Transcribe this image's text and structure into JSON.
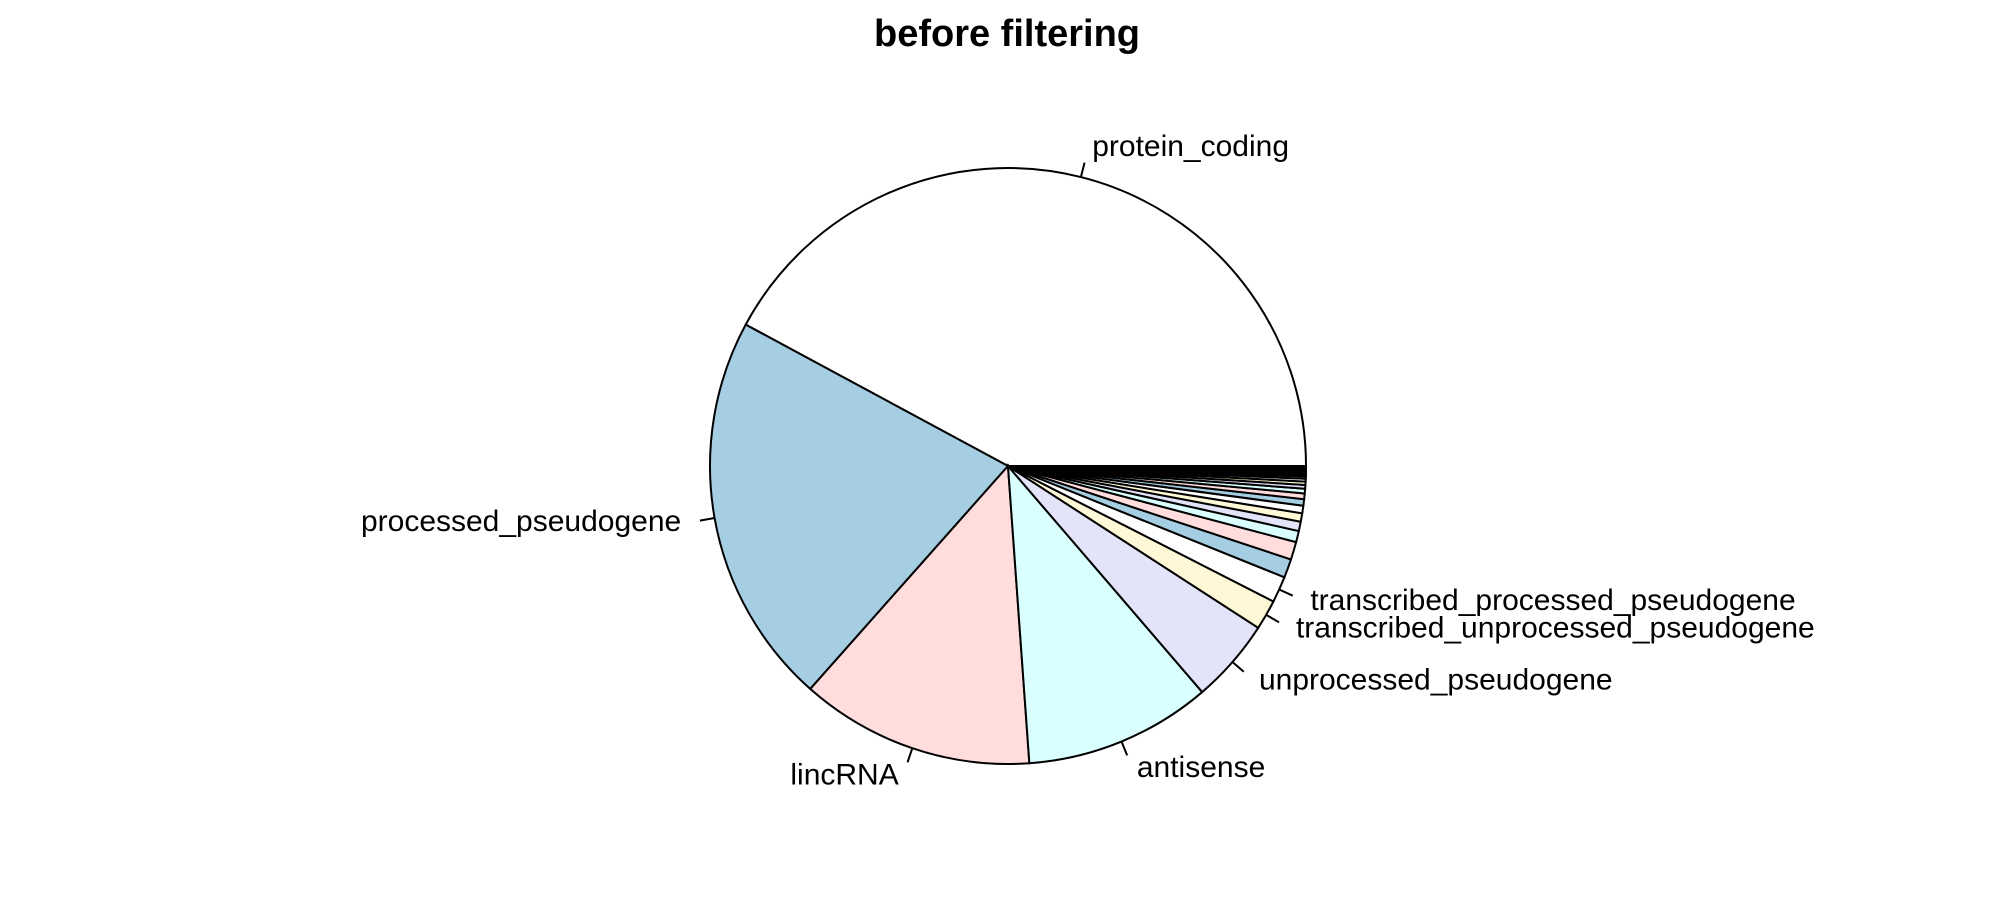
{
  "chart_data": {
    "type": "pie",
    "title": "before filtering",
    "start_angle_deg": 0,
    "direction": "counterclockwise",
    "slices": [
      {
        "label": "protein_coding",
        "value": 41.5,
        "color": "#ffffff"
      },
      {
        "label": "processed_pseudogene",
        "value": 21.0,
        "color": "#a6cee3"
      },
      {
        "label": "lincRNA",
        "value": 12.5,
        "color": "#ffdddd"
      },
      {
        "label": "antisense",
        "value": 10.0,
        "color": "#d9ffff"
      },
      {
        "label": "unprocessed_pseudogene",
        "value": 4.5,
        "color": "#e3e3fa"
      },
      {
        "label": "transcribed_unprocessed_pseudogene",
        "value": 1.6,
        "color": "#fff8d6"
      },
      {
        "label": "transcribed_processed_pseudogene",
        "value": 1.4,
        "color": "#ffffff"
      },
      {
        "label": "",
        "value": 1.0,
        "color": "#a6cee3"
      },
      {
        "label": "",
        "value": 0.95,
        "color": "#ffdddd"
      },
      {
        "label": "",
        "value": 0.6,
        "color": "#d9ffff"
      },
      {
        "label": "",
        "value": 0.5,
        "color": "#e3e3fa"
      },
      {
        "label": "",
        "value": 0.45,
        "color": "#fff8d6"
      },
      {
        "label": "",
        "value": 0.4,
        "color": "#ffffff"
      },
      {
        "label": "",
        "value": 0.35,
        "color": "#a6cee3"
      },
      {
        "label": "",
        "value": 0.3,
        "color": "#ffdddd"
      },
      {
        "label": "",
        "value": 0.25,
        "color": "#d9ffff"
      },
      {
        "label": "",
        "value": 0.2,
        "color": "#e3e3fa"
      },
      {
        "label": "",
        "value": 0.18,
        "color": "#fff8d6"
      },
      {
        "label": "",
        "value": 0.15,
        "color": "#ffffff"
      },
      {
        "label": "",
        "value": 0.12,
        "color": "#a6cee3"
      },
      {
        "label": "",
        "value": 0.1,
        "color": "#ffdddd"
      },
      {
        "label": "",
        "value": 0.08,
        "color": "#d9ffff"
      },
      {
        "label": "",
        "value": 0.07,
        "color": "#e3e3fa"
      },
      {
        "label": "",
        "value": 0.06,
        "color": "#fff8d6"
      },
      {
        "label": "",
        "value": 0.05,
        "color": "#ffffff"
      },
      {
        "label": "",
        "value": 0.05,
        "color": "#a6cee3"
      },
      {
        "label": "",
        "value": 0.04,
        "color": "#ffdddd"
      },
      {
        "label": "",
        "value": 0.04,
        "color": "#d9ffff"
      },
      {
        "label": "",
        "value": 0.03,
        "color": "#e3e3fa"
      },
      {
        "label": "",
        "value": 0.03,
        "color": "#fff8d6"
      }
    ]
  }
}
